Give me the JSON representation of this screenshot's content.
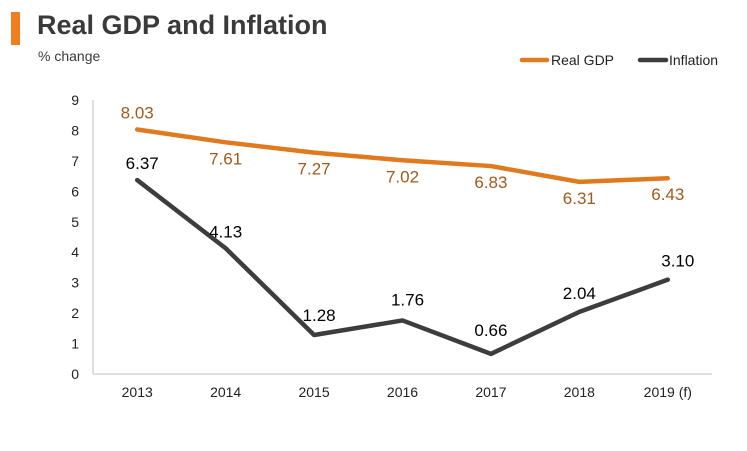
{
  "header": {
    "title": "Real GDP and Inflation",
    "subtitle": "% change",
    "accent_color": "#f07d1e"
  },
  "chart_data": {
    "type": "line",
    "title": "Real GDP and Inflation",
    "ylabel": "% change",
    "xlabel": "",
    "categories": [
      "2013",
      "2014",
      "2015",
      "2016",
      "2017",
      "2018",
      "2019 (f)"
    ],
    "ylim": [
      0,
      9
    ],
    "yticks": [
      0,
      1,
      2,
      3,
      4,
      5,
      6,
      7,
      8,
      9
    ],
    "grid": false,
    "legend_position": "top-right",
    "series": [
      {
        "name": "Real GDP",
        "color": "#e07a1f",
        "label_color": "#a05a1c",
        "values": [
          8.03,
          7.61,
          7.27,
          7.02,
          6.83,
          6.31,
          6.43
        ],
        "labels": [
          "8.03",
          "7.61",
          "7.27",
          "7.02",
          "6.83",
          "6.31",
          "6.43"
        ]
      },
      {
        "name": "Inflation",
        "color": "#3d3d3d",
        "label_color": "#000000",
        "values": [
          6.37,
          4.13,
          1.28,
          1.76,
          0.66,
          2.04,
          3.1
        ],
        "labels": [
          "6.37",
          "4.13",
          "1.28",
          "1.76",
          "0.66",
          "2.04",
          "3.10"
        ]
      }
    ]
  }
}
